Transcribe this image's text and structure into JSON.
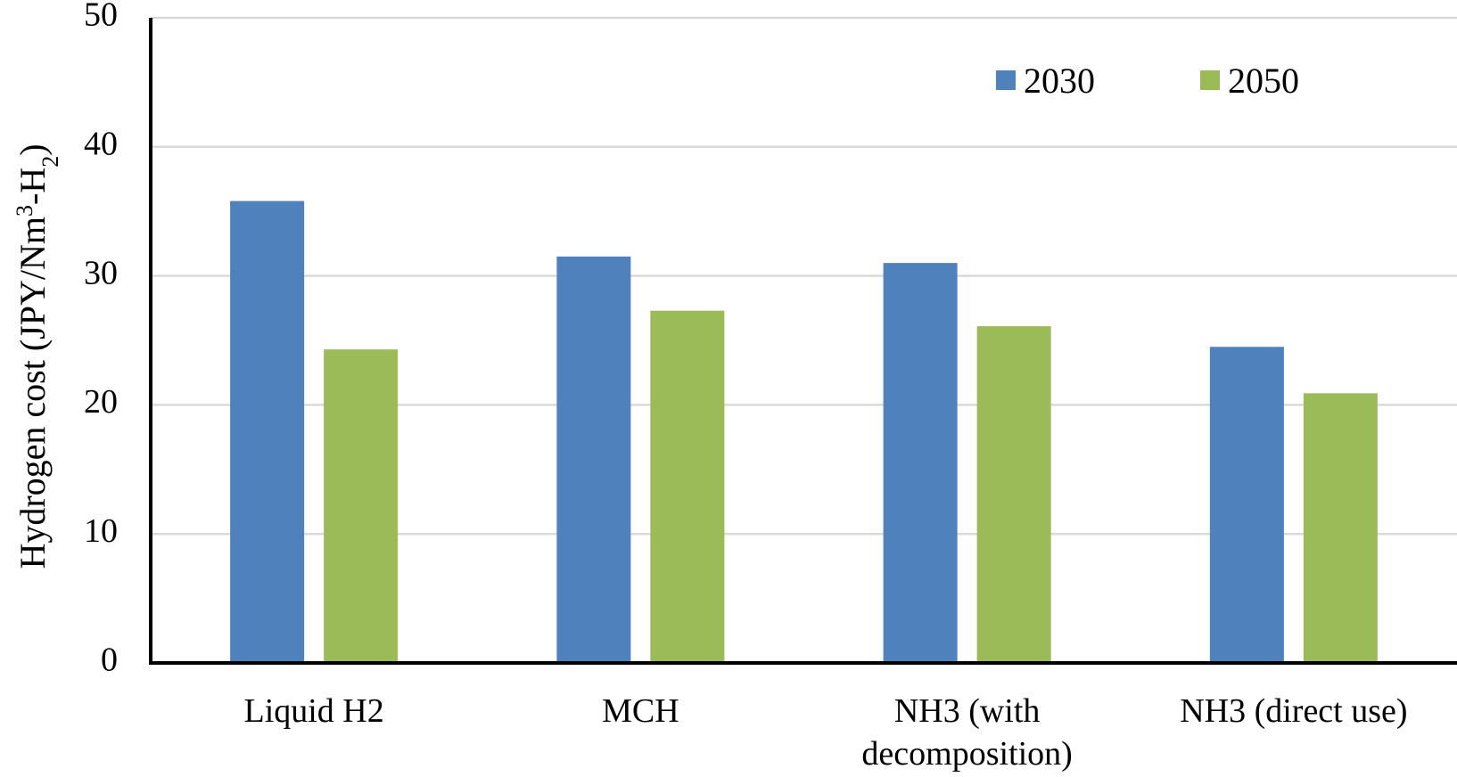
{
  "chart_data": {
    "type": "bar",
    "categories": [
      "Liquid H2",
      "MCH",
      "NH3 (with decomposition)",
      "NH3 (direct use)"
    ],
    "category_label_lines": [
      [
        "Liquid H2"
      ],
      [
        "MCH"
      ],
      [
        "NH3 (with",
        "decomposition)"
      ],
      [
        "NH3 (direct use)"
      ]
    ],
    "series": [
      {
        "name": "2030",
        "color": "#4f81bd",
        "values": [
          35.8,
          31.5,
          31.0,
          24.5
        ]
      },
      {
        "name": "2050",
        "color": "#9bbb59",
        "values": [
          24.3,
          27.3,
          26.1,
          20.9
        ]
      }
    ],
    "ylabel": "Hydrogen cost (JPY/Nm",
    "ylabel_sup": "3",
    "ylabel_mid": "-H",
    "ylabel_sub": "2",
    "ylabel_end": ")",
    "ylim": [
      0,
      50
    ],
    "yticks": [
      "0",
      "10",
      "20",
      "30",
      "40",
      "50"
    ],
    "grid": true,
    "legend_position": "top-right"
  }
}
